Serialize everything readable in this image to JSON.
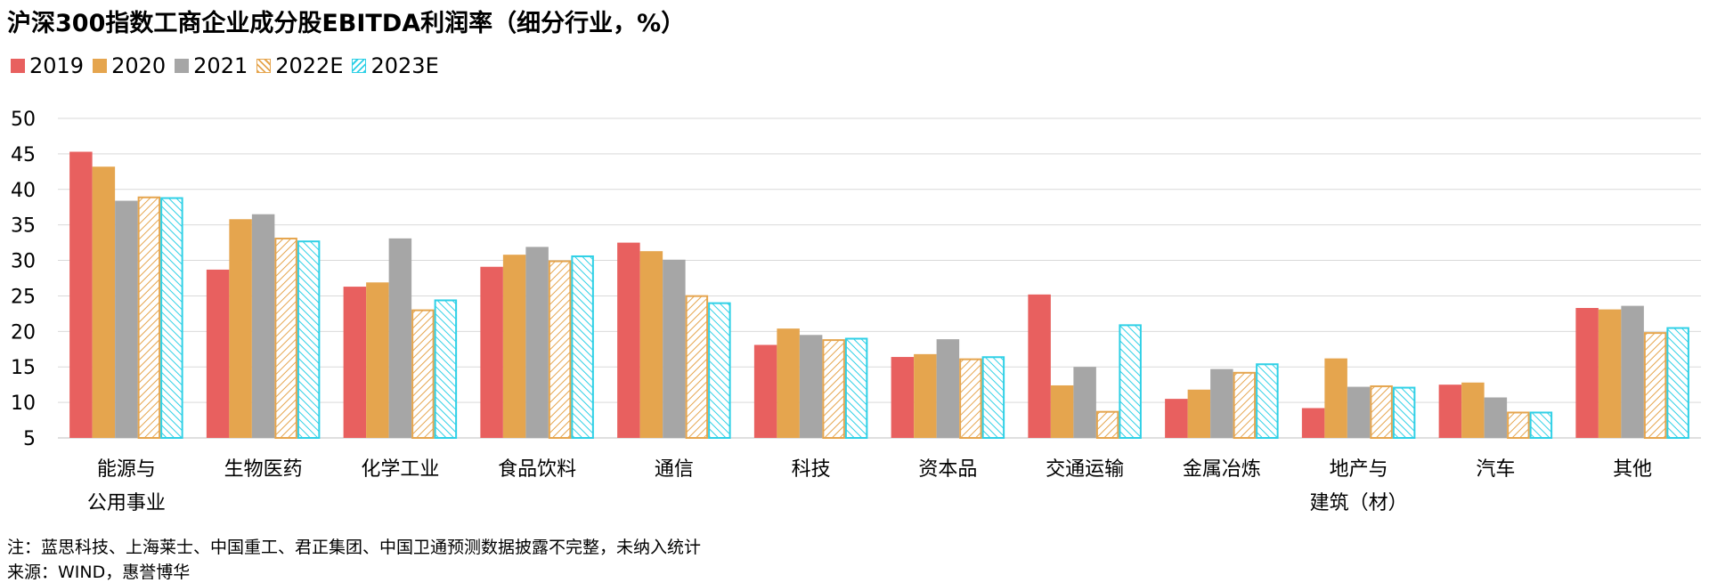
{
  "chart_data": {
    "type": "bar",
    "title": "沪深300指数工商企业成分股EBITDA利润率（细分行业，%）",
    "categories": [
      [
        "能源与",
        "公用事业"
      ],
      [
        "生物医药"
      ],
      [
        "化学工业"
      ],
      [
        "食品饮料"
      ],
      [
        "通信"
      ],
      [
        "科技"
      ],
      [
        "资本品"
      ],
      [
        "交通运输"
      ],
      [
        "金属冶炼"
      ],
      [
        "地产与",
        "建筑（材）"
      ],
      [
        "汽车"
      ],
      [
        "其他"
      ]
    ],
    "series": [
      {
        "name": "2019",
        "color": "#E8605F",
        "style": "solid",
        "values": [
          45.3,
          28.7,
          26.3,
          29.1,
          32.5,
          18.1,
          16.4,
          25.2,
          10.5,
          9.2,
          12.5,
          23.3
        ]
      },
      {
        "name": "2020",
        "color": "#E5A54E",
        "style": "solid",
        "values": [
          43.2,
          35.8,
          26.9,
          30.8,
          31.3,
          20.4,
          16.8,
          12.4,
          11.8,
          16.2,
          12.8,
          23.1
        ]
      },
      {
        "name": "2021",
        "color": "#A6A6A6",
        "style": "solid",
        "values": [
          38.4,
          36.5,
          33.1,
          31.9,
          30.1,
          19.5,
          18.9,
          15.0,
          14.7,
          12.2,
          10.7,
          23.6
        ]
      },
      {
        "name": "2022E",
        "color": "#E5A54E",
        "style": "hatched",
        "values": [
          39.0,
          33.2,
          23.1,
          30.0,
          25.1,
          18.9,
          16.2,
          8.8,
          14.3,
          12.4,
          8.7,
          19.9
        ]
      },
      {
        "name": "2023E",
        "color": "#2FD0E6",
        "style": "hatched",
        "values": [
          38.9,
          32.8,
          24.5,
          30.7,
          24.1,
          19.1,
          16.5,
          21.0,
          15.5,
          12.2,
          8.7,
          20.6
        ]
      }
    ],
    "yticks": [
      5,
      10,
      15,
      20,
      25,
      30,
      35,
      40,
      45,
      50
    ],
    "ylim": [
      5,
      50
    ],
    "grid": true,
    "legend_position": "top-left"
  },
  "note": "注：蓝思科技、上海莱士、中国重工、君正集团、中国卫通预测数据披露不完整，未纳入统计",
  "source": "来源：WIND，惠誉博华"
}
